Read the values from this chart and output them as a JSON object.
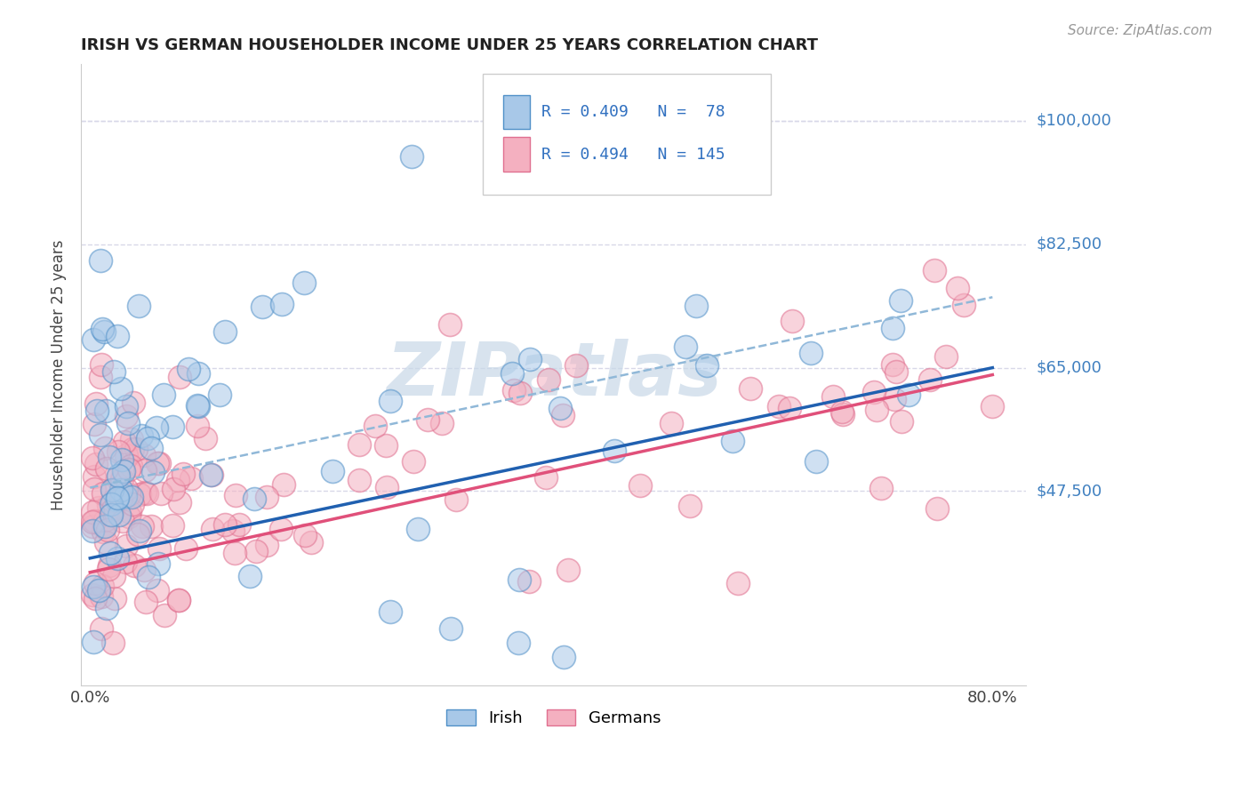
{
  "title": "IRISH VS GERMAN HOUSEHOLDER INCOME UNDER 25 YEARS CORRELATION CHART",
  "source_text": "Source: ZipAtlas.com",
  "ylabel": "Householder Income Under 25 years",
  "xticklabels": [
    "0.0%",
    "80.0%"
  ],
  "ytick_labels": [
    "$47,500",
    "$65,000",
    "$82,500",
    "$100,000"
  ],
  "ytick_values": [
    47500,
    65000,
    82500,
    100000
  ],
  "irish_color": "#a8c8e8",
  "irish_edge": "#5090c8",
  "german_color": "#f4b0c0",
  "german_edge": "#e07090",
  "irish_R": 0.409,
  "irish_N": 78,
  "german_R": 0.494,
  "german_N": 145,
  "irish_line_color": "#2060b0",
  "german_line_color": "#e0507a",
  "irish_dash_color": "#90b8d8",
  "watermark_color": "#c8d8e8",
  "background_color": "#ffffff",
  "legend_text_color": "#3070c0",
  "ytick_color": "#4080c0",
  "title_color": "#222222",
  "source_color": "#999999",
  "ylabel_color": "#444444",
  "xtick_color": "#444444",
  "grid_color": "#d8d8e8",
  "spine_color": "#cccccc"
}
